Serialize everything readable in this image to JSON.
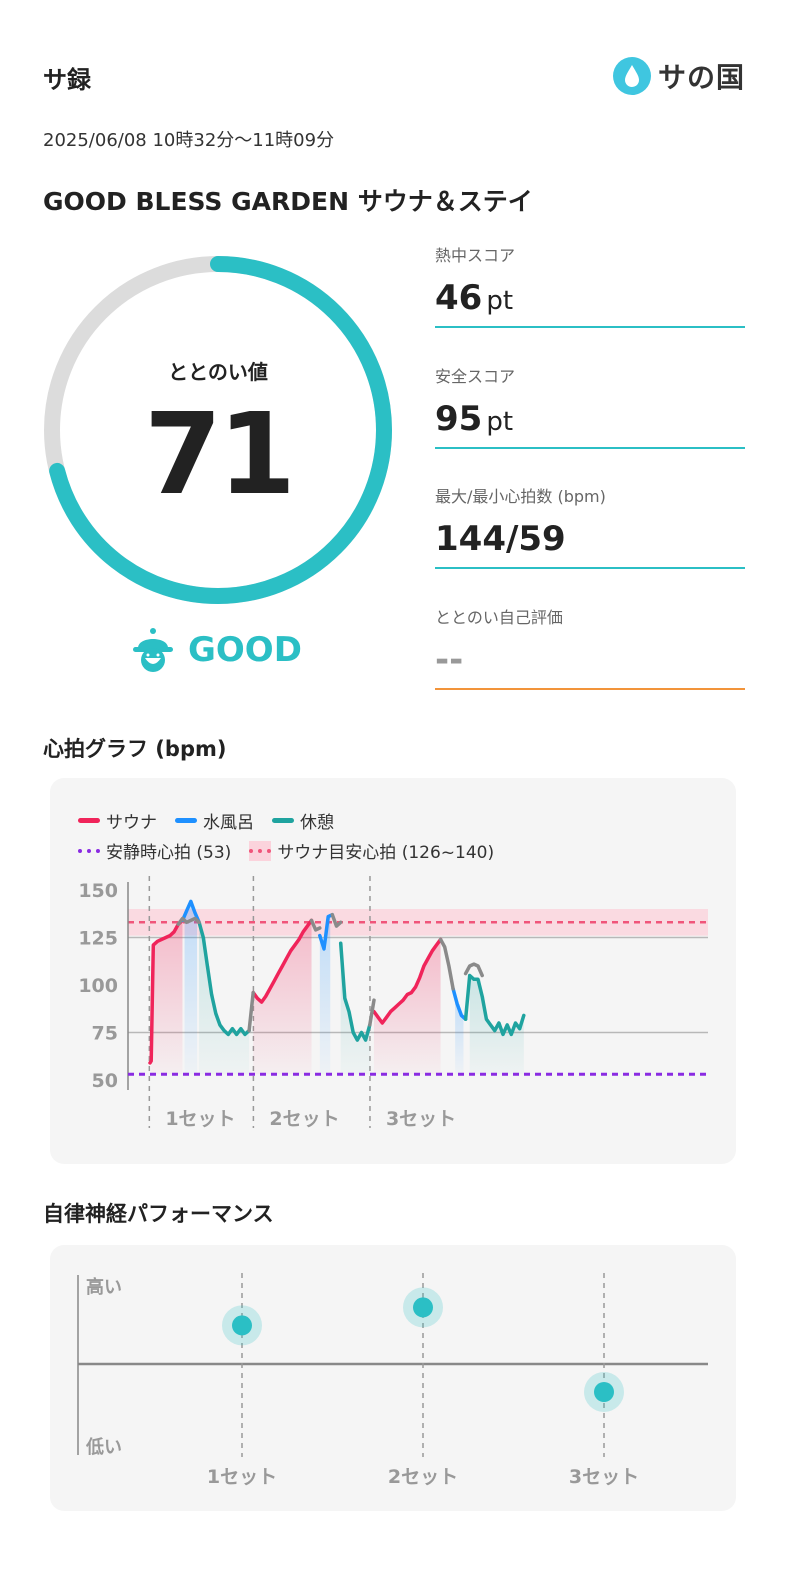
{
  "header": {
    "title": "サ録",
    "logo_text": "サの国"
  },
  "session": {
    "datetime": "2025/06/08 10時32分〜11時09分",
    "facility": "GOOD BLESS GARDEN サウナ＆ステイ"
  },
  "totonoi": {
    "label": "ととのい値",
    "value": "71",
    "rating": "GOOD",
    "ring_fraction": 0.71
  },
  "scores": [
    {
      "label": "熱中スコア",
      "value": "46",
      "unit": "pt"
    },
    {
      "label": "安全スコア",
      "value": "95",
      "unit": "pt"
    },
    {
      "label": "最大/最小心拍数 (bpm)",
      "value": "144/59",
      "unit": ""
    },
    {
      "label": "ととのい自己評価",
      "value": "--",
      "unit": ""
    }
  ],
  "heart_section": {
    "title": "心拍グラフ (bpm)",
    "legend": {
      "sauna": "サウナ",
      "cold_bath": "水風呂",
      "rest": "休憩",
      "resting_hr": "安静時心拍 (53)",
      "target_hr": "サウナ目安心拍 (126~140)"
    }
  },
  "chart_data": [
    {
      "type": "line",
      "title": "心拍グラフ (bpm)",
      "ylim": [
        50,
        150
      ],
      "yticks": [
        "150",
        "125",
        "100",
        "75",
        "50"
      ],
      "set_labels": [
        "1セット",
        "2セット",
        "3セット"
      ],
      "resting_hr": 53,
      "target_band": [
        126,
        140
      ],
      "series": [
        {
          "name": "サウナ",
          "color": "#f0245a",
          "segments": [
            [
              [
                1.2,
                59
              ],
              [
                1.5,
                60
              ],
              [
                2,
                121
              ],
              [
                3,
                123
              ],
              [
                4,
                124
              ],
              [
                5,
                125
              ],
              [
                6,
                126
              ],
              [
                7,
                128
              ],
              [
                8,
                132
              ],
              [
                9,
                134
              ]
            ],
            [
              [
                26,
                96
              ],
              [
                27,
                93
              ],
              [
                28,
                91
              ],
              [
                29,
                94
              ],
              [
                30,
                98
              ],
              [
                31,
                102
              ],
              [
                32,
                106
              ],
              [
                33,
                110
              ],
              [
                34,
                114
              ],
              [
                35,
                118
              ],
              [
                36,
                121
              ],
              [
                37,
                124
              ],
              [
                38,
                128
              ],
              [
                39,
                131
              ],
              [
                40,
                134
              ]
            ],
            [
              [
                55,
                86
              ],
              [
                56,
                83
              ],
              [
                57,
                80
              ],
              [
                58,
                83
              ],
              [
                59,
                86
              ],
              [
                60,
                88
              ],
              [
                61,
                90
              ],
              [
                62,
                92
              ],
              [
                63,
                95
              ],
              [
                64,
                96
              ],
              [
                65,
                99
              ],
              [
                66,
                104
              ],
              [
                67,
                110
              ],
              [
                68,
                114
              ],
              [
                69,
                118
              ],
              [
                70,
                121
              ],
              [
                71,
                124
              ]
            ]
          ]
        },
        {
          "name": "水風呂",
          "color": "#1e90ff",
          "segments": [
            [
              [
                9,
                134
              ],
              [
                10,
                139
              ],
              [
                11,
                144
              ],
              [
                12,
                138
              ],
              [
                13,
                133
              ]
            ],
            [
              [
                42,
                126
              ],
              [
                43,
                119
              ],
              [
                44,
                136
              ],
              [
                45,
                137
              ]
            ],
            [
              [
                74,
                98
              ],
              [
                75,
                90
              ],
              [
                76,
                84
              ],
              [
                77,
                82
              ]
            ]
          ]
        },
        {
          "name": "休憩",
          "color": "#1fa39f",
          "segments": [
            [
              [
                13,
                133
              ],
              [
                14,
                125
              ],
              [
                15,
                110
              ],
              [
                16,
                95
              ],
              [
                17,
                85
              ],
              [
                18,
                79
              ],
              [
                19,
                76
              ],
              [
                20,
                74
              ],
              [
                21,
                77
              ],
              [
                22,
                74
              ],
              [
                23,
                77
              ],
              [
                24,
                74
              ],
              [
                25,
                76
              ]
            ],
            [
              [
                47,
                122
              ],
              [
                48,
                93
              ],
              [
                49,
                86
              ],
              [
                50,
                75
              ],
              [
                51,
                71
              ],
              [
                52,
                75
              ],
              [
                53,
                71
              ],
              [
                54,
                79
              ]
            ],
            [
              [
                77,
                82
              ],
              [
                78,
                105
              ],
              [
                79,
                103
              ],
              [
                80,
                103
              ],
              [
                81,
                94
              ],
              [
                82,
                82
              ],
              [
                83,
                79
              ],
              [
                84,
                76
              ],
              [
                85,
                80
              ],
              [
                86,
                74
              ],
              [
                87,
                79
              ],
              [
                88,
                74
              ],
              [
                89,
                80
              ],
              [
                90,
                77
              ],
              [
                91,
                84
              ]
            ]
          ]
        },
        {
          "name": "",
          "color": "#8a8a8a",
          "segments": [
            [
              [
                8,
                132
              ],
              [
                9,
                135
              ],
              [
                10,
                133
              ],
              [
                12,
                135
              ],
              [
                13,
                133
              ]
            ],
            [
              [
                25,
                76
              ],
              [
                26,
                96
              ]
            ],
            [
              [
                40,
                134
              ],
              [
                41,
                129
              ],
              [
                42,
                130
              ]
            ],
            [
              [
                45,
                137
              ],
              [
                46,
                131
              ],
              [
                47,
                133
              ]
            ],
            [
              [
                54,
                79
              ],
              [
                55,
                92
              ]
            ],
            [
              [
                71,
                124
              ],
              [
                72,
                120
              ],
              [
                73,
                110
              ],
              [
                74,
                98
              ]
            ],
            [
              [
                77,
                106
              ],
              [
                78,
                110
              ],
              [
                79,
                111
              ],
              [
                80,
                110
              ],
              [
                81,
                105
              ]
            ]
          ]
        }
      ],
      "fills": [
        {
          "kind": "sauna",
          "from": 1.5,
          "to": 9
        },
        {
          "kind": "cold",
          "from": 9.5,
          "to": 12.5
        },
        {
          "kind": "rest",
          "from": 13,
          "to": 25
        },
        {
          "kind": "sauna",
          "from": 26,
          "to": 40
        },
        {
          "kind": "cold",
          "from": 42,
          "to": 44.5
        },
        {
          "kind": "rest",
          "from": 47,
          "to": 54
        },
        {
          "kind": "sauna",
          "from": 55,
          "to": 71
        },
        {
          "kind": "cold",
          "from": 74.5,
          "to": 76.5
        },
        {
          "kind": "rest",
          "from": 78,
          "to": 91
        }
      ],
      "set_dividers": [
        2,
        27,
        55
      ]
    },
    {
      "type": "scatter",
      "title": "自律神経パフォーマンス",
      "ylabels": {
        "high": "高い",
        "low": "低い"
      },
      "categories": [
        "1セット",
        "2セット",
        "3セット"
      ],
      "values": [
        0.72,
        0.82,
        0.35
      ],
      "color": "#2bbfc5"
    }
  ]
}
